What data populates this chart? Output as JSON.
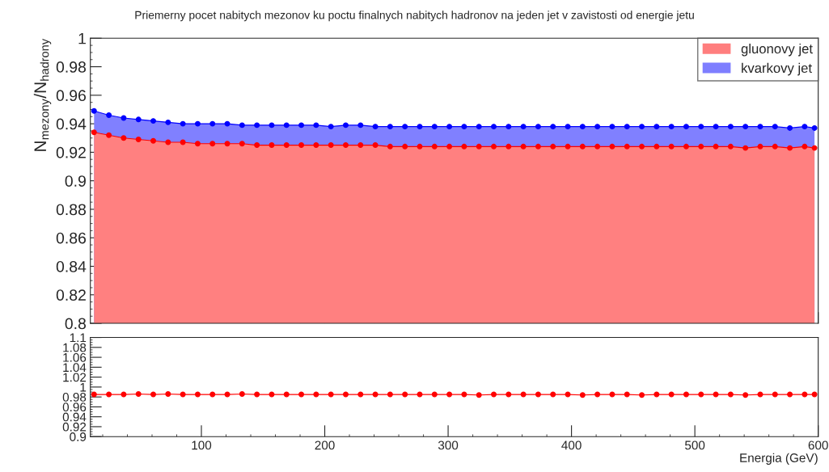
{
  "chart_data": [
    {
      "type": "area",
      "title": "Priemerny pocet nabitych mezonov ku poctu finalnych nabitych hadronov na jeden jet v zavistosti od energie jetu",
      "ylabel": "N$_{mezony}$/N$_{hadrony}$",
      "x": [
        13,
        25,
        37,
        49,
        61,
        73,
        85,
        97,
        109,
        121,
        133,
        145,
        157,
        169,
        181,
        193,
        205,
        217,
        229,
        241,
        253,
        265,
        277,
        289,
        301,
        313,
        325,
        337,
        349,
        361,
        373,
        385,
        397,
        409,
        421,
        433,
        445,
        457,
        469,
        481,
        493,
        505,
        517,
        529,
        541,
        553,
        565,
        577,
        589,
        597
      ],
      "series": [
        {
          "name": "gluonovy jet",
          "color": "#ff0000",
          "values": [
            0.934,
            0.932,
            0.93,
            0.929,
            0.928,
            0.927,
            0.927,
            0.926,
            0.926,
            0.926,
            0.926,
            0.925,
            0.925,
            0.925,
            0.925,
            0.925,
            0.925,
            0.925,
            0.925,
            0.925,
            0.924,
            0.924,
            0.924,
            0.924,
            0.924,
            0.924,
            0.924,
            0.924,
            0.924,
            0.924,
            0.924,
            0.924,
            0.924,
            0.924,
            0.924,
            0.924,
            0.924,
            0.924,
            0.924,
            0.924,
            0.924,
            0.924,
            0.924,
            0.924,
            0.923,
            0.924,
            0.924,
            0.923,
            0.924,
            0.923
          ]
        },
        {
          "name": "kvarkovy jet",
          "color": "#0000ff",
          "values": [
            0.949,
            0.946,
            0.944,
            0.943,
            0.942,
            0.941,
            0.94,
            0.94,
            0.94,
            0.94,
            0.939,
            0.939,
            0.939,
            0.939,
            0.939,
            0.939,
            0.938,
            0.939,
            0.939,
            0.938,
            0.938,
            0.938,
            0.938,
            0.938,
            0.938,
            0.938,
            0.938,
            0.938,
            0.938,
            0.938,
            0.938,
            0.938,
            0.938,
            0.938,
            0.938,
            0.938,
            0.938,
            0.938,
            0.938,
            0.938,
            0.938,
            0.938,
            0.938,
            0.938,
            0.938,
            0.938,
            0.938,
            0.937,
            0.938,
            0.937
          ]
        }
      ],
      "xlim": [
        10,
        600
      ],
      "xticks": [
        100,
        200,
        300,
        400,
        500,
        600
      ],
      "ylim": [
        0.8,
        1.0
      ],
      "yticks": [
        0.8,
        0.82,
        0.84,
        0.86,
        0.88,
        0.9,
        0.92,
        0.94,
        0.96,
        0.98,
        1
      ],
      "tick_labels": "y",
      "legend": "top right",
      "marker": "circle",
      "grid": false
    },
    {
      "type": "line",
      "xlabel": "Energia (GeV)",
      "x": [
        13,
        25,
        37,
        49,
        61,
        73,
        85,
        97,
        109,
        121,
        133,
        145,
        157,
        169,
        181,
        193,
        205,
        217,
        229,
        241,
        253,
        265,
        277,
        289,
        301,
        313,
        325,
        337,
        349,
        361,
        373,
        385,
        397,
        409,
        421,
        433,
        445,
        457,
        469,
        481,
        493,
        505,
        517,
        529,
        541,
        553,
        565,
        577,
        589,
        597
      ],
      "series": [
        {
          "color": "#ff0000",
          "values": [
            0.985,
            0.985,
            0.985,
            0.986,
            0.985,
            0.986,
            0.985,
            0.985,
            0.985,
            0.985,
            0.986,
            0.985,
            0.985,
            0.985,
            0.985,
            0.985,
            0.985,
            0.985,
            0.985,
            0.985,
            0.985,
            0.985,
            0.985,
            0.985,
            0.985,
            0.985,
            0.984,
            0.985,
            0.985,
            0.985,
            0.985,
            0.985,
            0.985,
            0.984,
            0.985,
            0.985,
            0.985,
            0.984,
            0.985,
            0.985,
            0.985,
            0.985,
            0.985,
            0.985,
            0.984,
            0.985,
            0.985,
            0.985,
            0.985,
            0.985
          ]
        }
      ],
      "xlim": [
        10,
        600
      ],
      "xticks": [
        100,
        200,
        300,
        400,
        500,
        600
      ],
      "ylim": [
        0.9,
        1.1
      ],
      "yticks": [
        0.9,
        0.92,
        0.94,
        0.96,
        0.98,
        1,
        1.02,
        1.04,
        1.06,
        1.08,
        1.1
      ],
      "marker": "circle",
      "grid": false
    }
  ]
}
